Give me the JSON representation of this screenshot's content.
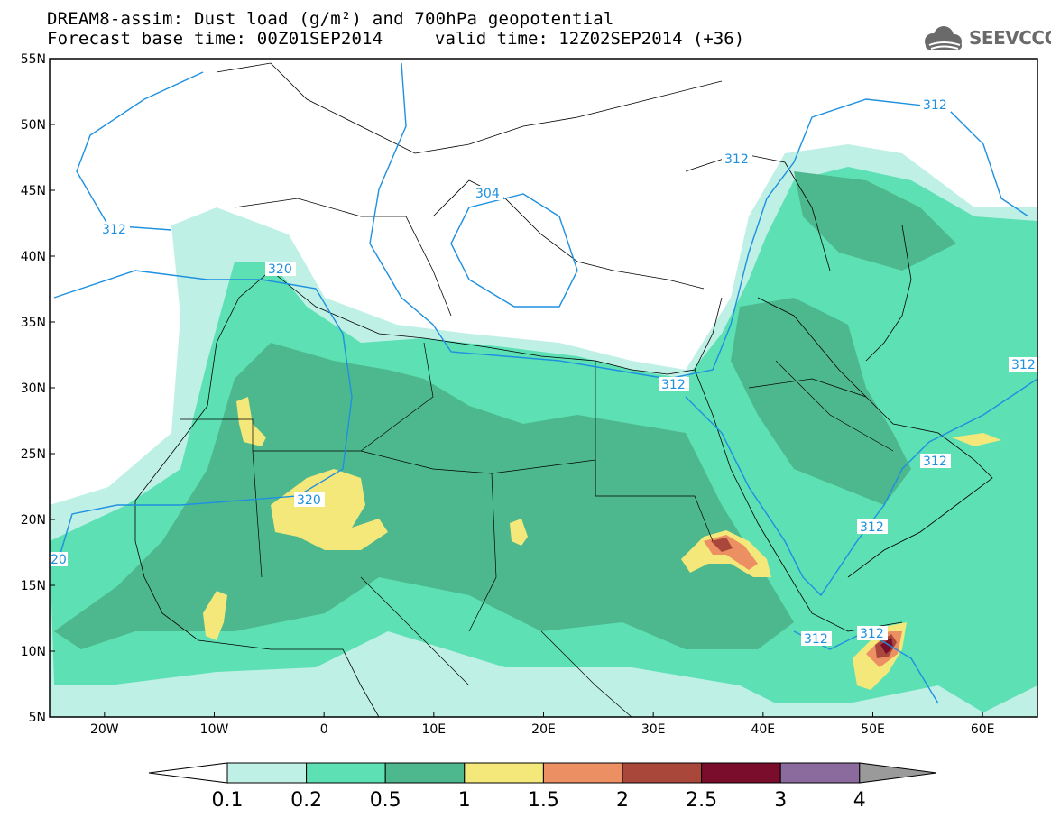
{
  "title": {
    "line1": "DREAM8-assim: Dust load (g/m²) and 700hPa geopotential",
    "line2": "Forecast base time: 00Z01SEP2014",
    "line2b": "valid time: 12Z02SEP2014 (+36)"
  },
  "logo": {
    "text": "SEEVCCC",
    "icon": "cloud-icon"
  },
  "map": {
    "lon_range": [
      -25,
      65
    ],
    "lat_range": [
      5,
      55
    ],
    "lat_ticks": [
      "55N",
      "50N",
      "45N",
      "40N",
      "35N",
      "30N",
      "25N",
      "20N",
      "15N",
      "10N",
      "5N"
    ],
    "lon_ticks": [
      "20W",
      "10W",
      "0",
      "10E",
      "20E",
      "30E",
      "40E",
      "50E",
      "60E"
    ]
  },
  "contours": {
    "labels": [
      "312",
      "320",
      "304",
      "312",
      "312",
      "320",
      "312",
      "312",
      "312",
      "312",
      "312",
      "312",
      "20"
    ],
    "color": "#1e90e0"
  },
  "legend": {
    "labels": [
      "0.1",
      "0.2",
      "0.5",
      "1",
      "1.5",
      "2",
      "2.5",
      "3",
      "4"
    ],
    "colors": [
      "#ffffff",
      "#bff0e6",
      "#5ce0b4",
      "#4db88d",
      "#f5e87a",
      "#ec8f62",
      "#a9483a",
      "#7a0c2c",
      "#8b6a9e",
      "#9a9a9a"
    ]
  }
}
